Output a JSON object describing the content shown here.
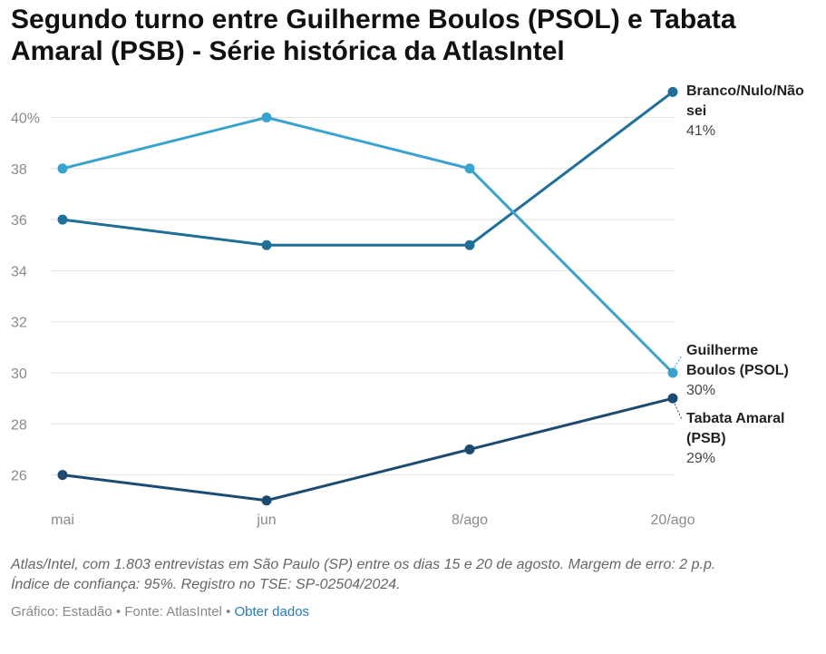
{
  "title": "Segundo turno entre Guilherme Boulos (PSOL) e Tabata Amaral (PSB) - Série histórica da AtlasIntel",
  "note_line1": "Atlas/Intel, com 1.803 entrevistas em São Paulo (SP) entre os dias 15 e 20 de agosto. Margem de erro: 2 p.p.",
  "note_line2": "Índice de confiança: 95%. Registro no TSE: SP-02504/2024.",
  "footer": {
    "credit": "Gráfico: Estadão",
    "separator": " • ",
    "source": "Fonte: AtlasIntel",
    "link": "Obter dados"
  },
  "chart_data": {
    "type": "line",
    "categories": [
      "mai",
      "jun",
      "8/ago",
      "20/ago"
    ],
    "ylim": [
      25,
      41
    ],
    "yticks": [
      26,
      28,
      30,
      32,
      34,
      36,
      38,
      40
    ],
    "ytick_labels": [
      "26",
      "28",
      "30",
      "32",
      "34",
      "36",
      "38",
      "40%"
    ],
    "grid": true,
    "series": [
      {
        "name_lines": [
          "Branco/Nulo/Não",
          "sei"
        ],
        "value_label": "41%",
        "color": "#1f6f99",
        "values": [
          36,
          35,
          35,
          41
        ]
      },
      {
        "name_lines": [
          "Guilherme",
          "Boulos (PSOL)"
        ],
        "value_label": "30%",
        "color": "#3aa2cf",
        "values": [
          38,
          40,
          38,
          30
        ]
      },
      {
        "name_lines": [
          "Tabata Amaral",
          "(PSB)"
        ],
        "value_label": "29%",
        "color": "#1b4a72",
        "values": [
          26,
          25,
          27,
          29
        ]
      }
    ]
  }
}
